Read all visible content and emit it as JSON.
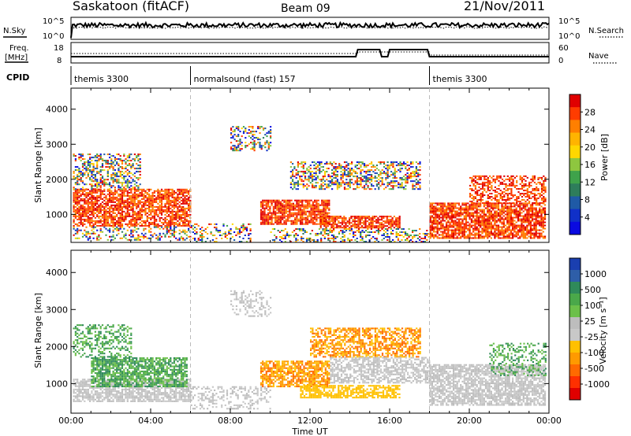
{
  "header": {
    "title": "Saskatoon (fitACF)",
    "beam": "Beam 09",
    "date": "21/Nov/2011"
  },
  "strips": {
    "nsky_label": "N.Sky",
    "nsearch_label": "N.Search",
    "freq_label_1": "Freq.",
    "freq_label_2": "[MHz]",
    "nave_label": "Nave",
    "cpid_label": "CPID",
    "n_ticks_left": [
      "10^5",
      "10^0"
    ],
    "n_ticks_right": [
      "10^5",
      "10^0"
    ],
    "freq_ticks": [
      "18",
      "8"
    ],
    "nave_ticks": [
      "60",
      "0"
    ]
  },
  "cpid_segments": [
    {
      "label": "themis 3300",
      "start": 0
    },
    {
      "label": "normalsound (fast) 157",
      "start": 6
    },
    {
      "label": "themis 3300",
      "start": 18
    }
  ],
  "chart_data": [
    {
      "type": "heatmap",
      "name": "power",
      "ylabel": "Slant Range [km]",
      "xlabel": "",
      "ylim": [
        200,
        4600
      ],
      "xlim": [
        0,
        24
      ],
      "y_ticks": [
        1000,
        2000,
        3000,
        4000
      ],
      "colorbar": {
        "label": "Power [dB]",
        "ticks": [
          "28",
          "24",
          "20",
          "16",
          "12",
          "8",
          "4"
        ],
        "colors": [
          "#e00000",
          "#ff3c00",
          "#ff7f00",
          "#ffb400",
          "#ffd700",
          "#8ec63f",
          "#3fa24b",
          "#2e7d5b",
          "#1f5aa6",
          "#1030c8",
          "#0a0ae0"
        ]
      }
    },
    {
      "type": "heatmap",
      "name": "velocity",
      "ylabel": "Slant Range [km]",
      "xlabel": "Time UT",
      "ylim": [
        200,
        4600
      ],
      "xlim": [
        0,
        24
      ],
      "y_ticks": [
        1000,
        2000,
        3000,
        4000
      ],
      "x_ticks": [
        "00:00",
        "04:00",
        "08:00",
        "12:00",
        "16:00",
        "20:00",
        "00:00"
      ],
      "colorbar": {
        "label": "Velocity [m s⁻¹]",
        "ticks": [
          "1000",
          "500",
          "100",
          "25",
          "-25",
          "-100",
          "-500",
          "-1000"
        ],
        "colors": [
          "#1a3fb0",
          "#2e5ea8",
          "#2f8a5a",
          "#4aa84a",
          "#6cc04a",
          "#bdbdbd",
          "#c8c8c8",
          "#ffc000",
          "#ff9a00",
          "#ff6a00",
          "#ff3000",
          "#e00000"
        ]
      }
    }
  ]
}
